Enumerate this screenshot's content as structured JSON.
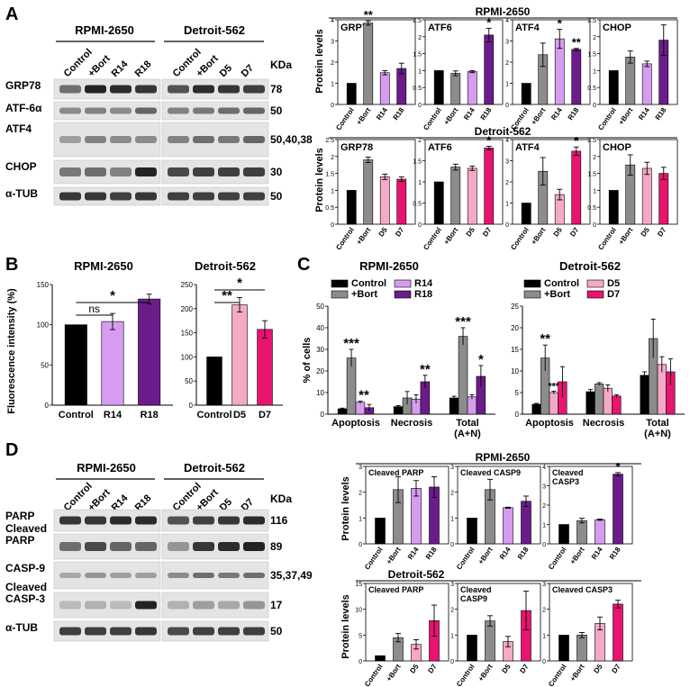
{
  "colors": {
    "control": "#000000",
    "bort": "#8c8c8c",
    "r14": "#d69cf0",
    "r18": "#6b1c8a",
    "d5": "#f4a9c7",
    "d7": "#e8146f",
    "panel_bg": "#ffffff",
    "axis": "#000000"
  },
  "panels": {
    "A": {
      "letter": "A",
      "group_labels": [
        "RPMI-2650",
        "Detroit-562"
      ],
      "lane_labels": [
        "Control",
        "+Bort",
        "R14",
        "R18",
        "Control",
        "+Bort",
        "D5",
        "D7"
      ],
      "kda_header": "KDa",
      "bands": [
        {
          "name": "GRP78",
          "kda": "78"
        },
        {
          "name": "ATF-6α",
          "kda": "50"
        },
        {
          "name": "ATF4",
          "kda": "50,40,38"
        },
        {
          "name": "CHOP",
          "kda": "30"
        },
        {
          "name": "α-TUB",
          "kda": "50"
        }
      ],
      "row_titles": [
        "RPMI-2650",
        "Detroit-562"
      ],
      "ylabel": "Protein levels"
    },
    "B": {
      "letter": "B",
      "ylabel": "Fluorescence intensity (%)",
      "stars": [
        "ns",
        "*",
        "**",
        "*"
      ]
    },
    "C": {
      "letter": "C",
      "ylabel": "% of cells",
      "stars": [
        "***",
        "**",
        "**",
        "***",
        "*",
        "**",
        "***"
      ],
      "legend_left": [
        "Control",
        "+Bort",
        "R14",
        "R18"
      ],
      "legend_right": [
        "Control",
        "+Bort",
        "D5",
        "D7"
      ]
    },
    "D": {
      "letter": "D",
      "group_labels": [
        "RPMI-2650",
        "Detroit-562"
      ],
      "lane_labels": [
        "Control",
        "+Bort",
        "R14",
        "R18",
        "Control",
        "+Bort",
        "D5",
        "D7"
      ],
      "kda_header": "KDa",
      "bands": [
        {
          "name": "PARP",
          "kda": "116"
        },
        {
          "name": "Cleaved PARP",
          "kda": "89"
        },
        {
          "name": "CASP-9",
          "kda": "35,37,49"
        },
        {
          "name": "Cleaved CASP-3",
          "kda": "17"
        },
        {
          "name": "α-TUB",
          "kda": "50"
        }
      ],
      "row_titles": [
        "RPMI-2650",
        "Detroit-562"
      ],
      "ylabel": "Protein levels"
    }
  },
  "chart_data": [
    {
      "id": "A_r_grp78",
      "type": "bar",
      "title": "GRP78",
      "categories": [
        "Control",
        "+Bort",
        "R14",
        "R18"
      ],
      "values": [
        1.0,
        3.85,
        1.5,
        1.7
      ],
      "errors": [
        0,
        0.1,
        0.1,
        0.25
      ],
      "ylim": [
        0,
        4
      ],
      "yticks": [
        0,
        1,
        2,
        3,
        4
      ],
      "stars": [
        "",
        "**",
        "",
        ""
      ],
      "colors": [
        "control",
        "bort",
        "r14",
        "r18"
      ]
    },
    {
      "id": "A_r_atf6",
      "type": "bar",
      "title": "ATF6",
      "categories": [
        "Control",
        "+Bort",
        "R14",
        "R18"
      ],
      "values": [
        1.0,
        0.92,
        0.97,
        2.05
      ],
      "errors": [
        0,
        0.07,
        0.03,
        0.2
      ],
      "ylim": [
        0,
        2.5
      ],
      "yticks": [
        0,
        0.5,
        1.0,
        1.5,
        2.0,
        2.5
      ],
      "stars": [
        "",
        "",
        "",
        "*"
      ],
      "colors": [
        "control",
        "bort",
        "r14",
        "r18"
      ]
    },
    {
      "id": "A_r_atf4",
      "type": "bar",
      "title": "ATF4",
      "categories": [
        "Control",
        "+Bort",
        "R14",
        "R18"
      ],
      "values": [
        1.0,
        2.35,
        3.1,
        2.6
      ],
      "errors": [
        0,
        0.55,
        0.45,
        0.05
      ],
      "ylim": [
        0,
        4
      ],
      "yticks": [
        0,
        1,
        2,
        3,
        4
      ],
      "stars": [
        "",
        "",
        "*",
        "**"
      ],
      "colors": [
        "control",
        "bort",
        "r14",
        "r18"
      ]
    },
    {
      "id": "A_r_chop",
      "type": "bar",
      "title": "CHOP",
      "categories": [
        "Control",
        "+Bort",
        "R14",
        "R18"
      ],
      "values": [
        1.0,
        1.4,
        1.2,
        1.9
      ],
      "errors": [
        0,
        0.18,
        0.08,
        0.45
      ],
      "ylim": [
        0,
        2.5
      ],
      "yticks": [
        0,
        0.5,
        1.0,
        1.5,
        2.0,
        2.5
      ],
      "stars": [
        "",
        "",
        "",
        ""
      ],
      "colors": [
        "control",
        "bort",
        "r14",
        "r18"
      ]
    },
    {
      "id": "A_d_grp78",
      "type": "bar",
      "title": "GRP78",
      "categories": [
        "Control",
        "+Bort",
        "D5",
        "D7"
      ],
      "values": [
        1.0,
        1.9,
        1.4,
        1.33
      ],
      "errors": [
        0,
        0.08,
        0.08,
        0.07
      ],
      "ylim": [
        0,
        2.5
      ],
      "yticks": [
        0,
        0.5,
        1.0,
        1.5,
        2.0,
        2.5
      ],
      "stars": [
        "",
        "",
        "",
        ""
      ],
      "colors": [
        "control",
        "bort",
        "d5",
        "d7"
      ]
    },
    {
      "id": "A_d_atf6",
      "type": "bar",
      "title": "ATF6",
      "categories": [
        "Control",
        "+Bort",
        "D5",
        "D7"
      ],
      "values": [
        1.0,
        1.35,
        1.32,
        1.8
      ],
      "errors": [
        0,
        0.07,
        0.05,
        0.04
      ],
      "ylim": [
        0,
        2.0
      ],
      "yticks": [
        0,
        0.5,
        1.0,
        1.5,
        2.0
      ],
      "stars": [
        "",
        "",
        "",
        "*"
      ],
      "colors": [
        "control",
        "bort",
        "d5",
        "d7"
      ]
    },
    {
      "id": "A_d_atf4",
      "type": "bar",
      "title": "ATF4",
      "categories": [
        "Control",
        "+Bort",
        "D5",
        "D7"
      ],
      "values": [
        1.0,
        2.5,
        1.4,
        3.45
      ],
      "errors": [
        0,
        0.65,
        0.25,
        0.2
      ],
      "ylim": [
        0,
        4
      ],
      "yticks": [
        0,
        1,
        2,
        3,
        4
      ],
      "stars": [
        "",
        "",
        "",
        "*"
      ],
      "colors": [
        "control",
        "bort",
        "d5",
        "d7"
      ]
    },
    {
      "id": "A_d_chop",
      "type": "bar",
      "title": "CHOP",
      "categories": [
        "Control",
        "+Bort",
        "D5",
        "D7"
      ],
      "values": [
        1.0,
        1.75,
        1.65,
        1.5
      ],
      "errors": [
        0,
        0.3,
        0.18,
        0.18
      ],
      "ylim": [
        0,
        2.5
      ],
      "yticks": [
        0,
        0.5,
        1.0,
        1.5,
        2.0,
        2.5
      ],
      "stars": [
        "",
        "",
        "",
        ""
      ],
      "colors": [
        "control",
        "bort",
        "d5",
        "d7"
      ]
    },
    {
      "id": "B_rpmi",
      "type": "bar",
      "title": "RPMI-2650",
      "categories": [
        "Control",
        "R14",
        "R18"
      ],
      "values": [
        100,
        104,
        132
      ],
      "errors": [
        0,
        10,
        6
      ],
      "ylim": [
        0,
        150
      ],
      "yticks": [
        0,
        50,
        100,
        150
      ],
      "colors": [
        "control",
        "r14",
        "r18"
      ]
    },
    {
      "id": "B_detroit",
      "type": "bar",
      "title": "Detroit-562",
      "categories": [
        "Control",
        "D5",
        "D7"
      ],
      "values": [
        100,
        208,
        157
      ],
      "errors": [
        0,
        15,
        18
      ],
      "ylim": [
        0,
        250
      ],
      "yticks": [
        0,
        50,
        100,
        150,
        200,
        250
      ],
      "colors": [
        "control",
        "d5",
        "d7"
      ]
    },
    {
      "id": "C_rpmi",
      "type": "bar",
      "title": "RPMI-2650",
      "categories": [
        "Apoptosis",
        "Necrosis",
        "Total\n(A+N)"
      ],
      "series": [
        {
          "name": "Control",
          "values": [
            2.5,
            3.5,
            7.5
          ],
          "errors": [
            0.3,
            0.5,
            0.8
          ]
        },
        {
          "name": "+Bort",
          "values": [
            26,
            7.5,
            36
          ],
          "errors": [
            4,
            3,
            4
          ]
        },
        {
          "name": "R14",
          "values": [
            5.5,
            7,
            8
          ],
          "errors": [
            0.5,
            2,
            1
          ]
        },
        {
          "name": "R18",
          "values": [
            3,
            15,
            17.5
          ],
          "errors": [
            1.5,
            3,
            5
          ]
        }
      ],
      "ylim": [
        0,
        50
      ],
      "yticks": [
        0,
        10,
        20,
        30,
        40,
        50
      ]
    },
    {
      "id": "C_detroit",
      "type": "bar",
      "title": "Detroit-562",
      "categories": [
        "Apoptosis",
        "Necrosis",
        "Total\n(A+N)"
      ],
      "series": [
        {
          "name": "Control",
          "values": [
            2.3,
            5.2,
            9
          ],
          "errors": [
            0.2,
            0.5,
            0.8
          ]
        },
        {
          "name": "+Bort",
          "values": [
            13,
            7,
            17.5
          ],
          "errors": [
            3,
            0.3,
            4.5
          ]
        },
        {
          "name": "D5",
          "values": [
            5,
            6,
            11.5
          ],
          "errors": [
            0.3,
            0.8,
            1.8
          ]
        },
        {
          "name": "D7",
          "values": [
            7.5,
            4.2,
            9.8
          ],
          "errors": [
            3.5,
            0.3,
            3
          ]
        }
      ],
      "ylim": [
        0,
        25
      ],
      "yticks": [
        0,
        5,
        10,
        15,
        20,
        25
      ]
    },
    {
      "id": "D_r_parp",
      "type": "bar",
      "title": "Cleaved PARP",
      "categories": [
        "Control",
        "+Bort",
        "R14",
        "R18"
      ],
      "values": [
        1.0,
        2.1,
        2.15,
        2.2
      ],
      "errors": [
        0,
        0.5,
        0.3,
        0.4
      ],
      "ylim": [
        0,
        3
      ],
      "yticks": [
        0,
        1,
        2,
        3
      ],
      "stars": [
        "",
        "",
        "",
        ""
      ],
      "colors": [
        "control",
        "bort",
        "r14",
        "r18"
      ]
    },
    {
      "id": "D_r_casp9",
      "type": "bar",
      "title": "Cleaved CASP9",
      "categories": [
        "Control",
        "+Bort",
        "R14",
        "R18"
      ],
      "values": [
        1.0,
        2.1,
        1.4,
        1.65
      ],
      "errors": [
        0,
        0.4,
        0.02,
        0.2
      ],
      "ylim": [
        0,
        3
      ],
      "yticks": [
        0,
        1,
        2,
        3
      ],
      "stars": [
        "",
        "",
        "",
        ""
      ],
      "colors": [
        "control",
        "bort",
        "r14",
        "r18"
      ]
    },
    {
      "id": "D_r_casp3",
      "type": "bar",
      "title": "Cleaved\nCASP3",
      "categories": [
        "Control",
        "+Bort",
        "R14",
        "R18"
      ],
      "values": [
        1.0,
        1.2,
        1.25,
        3.6
      ],
      "errors": [
        0,
        0.12,
        0.03,
        0.08
      ],
      "ylim": [
        0,
        4
      ],
      "yticks": [
        0,
        1,
        2,
        3,
        4
      ],
      "stars": [
        "",
        "",
        "",
        "*"
      ],
      "colors": [
        "control",
        "bort",
        "r14",
        "r18"
      ]
    },
    {
      "id": "D_d_parp",
      "type": "bar",
      "title": "Cleaved PARP",
      "categories": [
        "Control",
        "+Bort",
        "D5",
        "D7"
      ],
      "values": [
        1.0,
        4.5,
        3.2,
        7.8
      ],
      "errors": [
        0,
        0.8,
        0.9,
        3.0
      ],
      "ylim": [
        0,
        15
      ],
      "yticks": [
        0,
        5,
        10,
        15
      ],
      "stars": [
        "",
        "",
        "",
        ""
      ],
      "colors": [
        "control",
        "bort",
        "d5",
        "d7"
      ]
    },
    {
      "id": "D_d_casp9",
      "type": "bar",
      "title": "Cleaved\nCASP9",
      "categories": [
        "Control",
        "+Bort",
        "D5",
        "D7"
      ],
      "values": [
        1.0,
        1.55,
        0.75,
        1.95
      ],
      "errors": [
        0,
        0.2,
        0.2,
        0.75
      ],
      "ylim": [
        0,
        3
      ],
      "yticks": [
        0,
        1,
        2,
        3
      ],
      "stars": [
        "",
        "",
        "",
        ""
      ],
      "colors": [
        "control",
        "bort",
        "d5",
        "d7"
      ]
    },
    {
      "id": "D_d_casp3",
      "type": "bar",
      "title": "Cleaved CASP3",
      "categories": [
        "Control",
        "+Bort",
        "D5",
        "D7"
      ],
      "values": [
        1.0,
        1.0,
        1.45,
        2.2
      ],
      "errors": [
        0,
        0.1,
        0.25,
        0.15
      ],
      "ylim": [
        0,
        3
      ],
      "yticks": [
        0,
        1,
        2,
        3
      ],
      "stars": [
        "",
        "",
        "",
        ""
      ],
      "colors": [
        "control",
        "bort",
        "d5",
        "d7"
      ]
    }
  ]
}
